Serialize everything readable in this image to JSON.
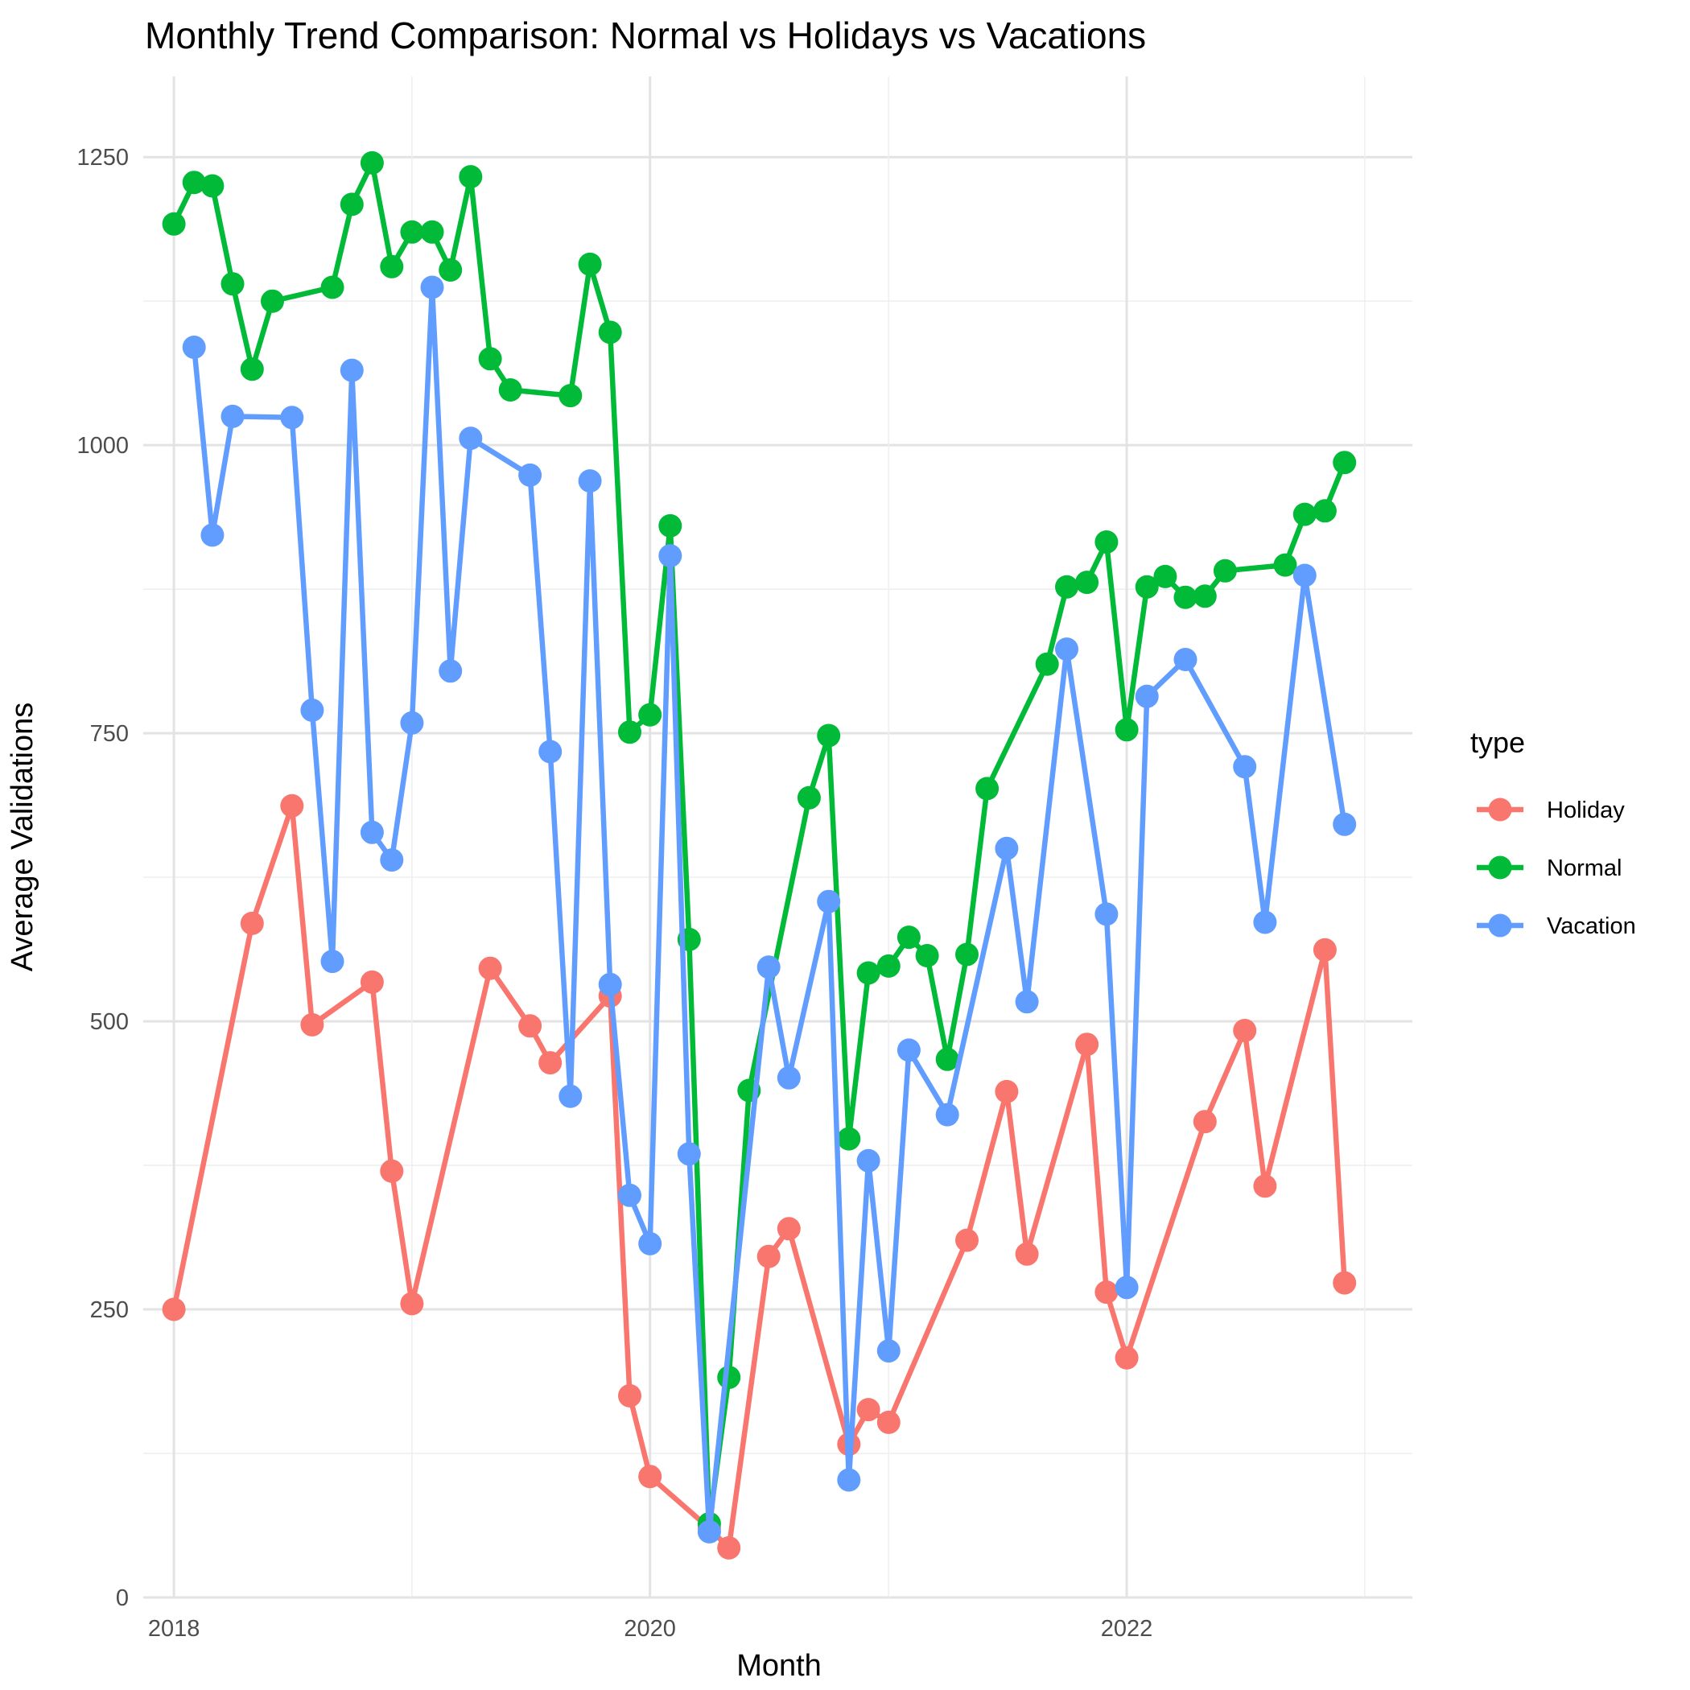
{
  "chart_data": {
    "type": "line",
    "title": "Monthly Trend Comparison: Normal vs Holidays vs Vacations",
    "xlabel": "Month",
    "ylabel": "Average Validations",
    "x_ticks": [
      "2018",
      "2020",
      "2022"
    ],
    "y_ticks": [
      "0",
      "250",
      "500",
      "750",
      "1000",
      "1250"
    ],
    "xlim": [
      "2017-11-15",
      "2023-03-15"
    ],
    "ylim": [
      0,
      1320
    ],
    "grid": true,
    "legend": {
      "title": "type",
      "position": "right"
    },
    "series": [
      {
        "name": "Holiday",
        "color": "#F8766D",
        "points": [
          [
            "2018-01-01",
            250
          ],
          [
            "2018-05-01",
            585
          ],
          [
            "2018-07-01",
            687
          ],
          [
            "2018-08-01",
            497
          ],
          [
            "2018-11-01",
            534
          ],
          [
            "2018-12-01",
            370
          ],
          [
            "2019-01-01",
            255
          ],
          [
            "2019-05-01",
            546
          ],
          [
            "2019-07-01",
            496
          ],
          [
            "2019-08-01",
            464
          ],
          [
            "2019-11-01",
            522
          ],
          [
            "2019-12-01",
            175
          ],
          [
            "2020-01-01",
            105
          ],
          [
            "2020-04-01",
            60
          ],
          [
            "2020-05-01",
            43
          ],
          [
            "2020-07-01",
            296
          ],
          [
            "2020-08-01",
            320
          ],
          [
            "2020-11-01",
            133
          ],
          [
            "2020-12-01",
            163
          ],
          [
            "2021-01-01",
            152
          ],
          [
            "2021-05-01",
            310
          ],
          [
            "2021-07-01",
            439
          ],
          [
            "2021-08-01",
            298
          ],
          [
            "2021-11-01",
            480
          ],
          [
            "2021-12-01",
            265
          ],
          [
            "2022-01-01",
            208
          ],
          [
            "2022-05-01",
            413
          ],
          [
            "2022-07-01",
            492
          ],
          [
            "2022-08-01",
            357
          ],
          [
            "2022-11-01",
            562
          ],
          [
            "2022-12-01",
            273
          ]
        ]
      },
      {
        "name": "Normal",
        "color": "#00BA38",
        "points": [
          [
            "2018-01-01",
            1192
          ],
          [
            "2018-02-01",
            1228
          ],
          [
            "2018-03-01",
            1225
          ],
          [
            "2018-04-01",
            1140
          ],
          [
            "2018-05-01",
            1066
          ],
          [
            "2018-06-01",
            1125
          ],
          [
            "2018-09-01",
            1137
          ],
          [
            "2018-10-01",
            1209
          ],
          [
            "2018-11-01",
            1245
          ],
          [
            "2018-12-01",
            1155
          ],
          [
            "2019-01-01",
            1185
          ],
          [
            "2019-02-01",
            1185
          ],
          [
            "2019-03-01",
            1152
          ],
          [
            "2019-04-01",
            1233
          ],
          [
            "2019-05-01",
            1075
          ],
          [
            "2019-06-01",
            1048
          ],
          [
            "2019-09-01",
            1043
          ],
          [
            "2019-10-01",
            1157
          ],
          [
            "2019-11-01",
            1098
          ],
          [
            "2019-12-01",
            751
          ],
          [
            "2020-01-01",
            766
          ],
          [
            "2020-02-01",
            930
          ],
          [
            "2020-03-01",
            571
          ],
          [
            "2020-04-01",
            64
          ],
          [
            "2020-05-01",
            191
          ],
          [
            "2020-06-01",
            440
          ],
          [
            "2020-09-01",
            694
          ],
          [
            "2020-10-01",
            748
          ],
          [
            "2020-11-01",
            398
          ],
          [
            "2020-12-01",
            542
          ],
          [
            "2021-01-01",
            548
          ],
          [
            "2021-02-01",
            573
          ],
          [
            "2021-03-01",
            557
          ],
          [
            "2021-04-01",
            467
          ],
          [
            "2021-05-01",
            558
          ],
          [
            "2021-06-01",
            702
          ],
          [
            "2021-09-01",
            810
          ],
          [
            "2021-10-01",
            877
          ],
          [
            "2021-11-01",
            881
          ],
          [
            "2021-12-01",
            916
          ],
          [
            "2022-01-01",
            753
          ],
          [
            "2022-02-01",
            877
          ],
          [
            "2022-03-01",
            886
          ],
          [
            "2022-04-01",
            868
          ],
          [
            "2022-05-01",
            869
          ],
          [
            "2022-06-01",
            891
          ],
          [
            "2022-09-01",
            896
          ],
          [
            "2022-10-01",
            940
          ],
          [
            "2022-11-01",
            943
          ],
          [
            "2022-12-01",
            985
          ]
        ]
      },
      {
        "name": "Vacation",
        "color": "#619CFF",
        "points": [
          [
            "2018-02-01",
            1085
          ],
          [
            "2018-03-01",
            922
          ],
          [
            "2018-04-01",
            1025
          ],
          [
            "2018-07-01",
            1024
          ],
          [
            "2018-08-01",
            770
          ],
          [
            "2018-09-01",
            552
          ],
          [
            "2018-10-01",
            1065
          ],
          [
            "2018-11-01",
            664
          ],
          [
            "2018-12-01",
            640
          ],
          [
            "2019-01-01",
            759
          ],
          [
            "2019-02-01",
            1137
          ],
          [
            "2019-03-01",
            804
          ],
          [
            "2019-04-01",
            1006
          ],
          [
            "2019-07-01",
            974
          ],
          [
            "2019-08-01",
            734
          ],
          [
            "2019-09-01",
            435
          ],
          [
            "2019-10-01",
            969
          ],
          [
            "2019-11-01",
            532
          ],
          [
            "2019-12-01",
            349
          ],
          [
            "2020-01-01",
            307
          ],
          [
            "2020-02-01",
            904
          ],
          [
            "2020-03-01",
            385
          ],
          [
            "2020-04-01",
            57
          ],
          [
            "2020-07-01",
            547
          ],
          [
            "2020-08-01",
            451
          ],
          [
            "2020-10-01",
            604
          ],
          [
            "2020-11-01",
            102
          ],
          [
            "2020-12-01",
            379
          ],
          [
            "2021-01-01",
            214
          ],
          [
            "2021-02-01",
            475
          ],
          [
            "2021-04-01",
            419
          ],
          [
            "2021-07-01",
            650
          ],
          [
            "2021-08-01",
            517
          ],
          [
            "2021-10-01",
            823
          ],
          [
            "2021-12-01",
            593
          ],
          [
            "2022-01-01",
            269
          ],
          [
            "2022-02-01",
            782
          ],
          [
            "2022-04-01",
            814
          ],
          [
            "2022-07-01",
            721
          ],
          [
            "2022-08-01",
            586
          ],
          [
            "2022-10-01",
            887
          ],
          [
            "2022-12-01",
            671
          ]
        ]
      }
    ]
  }
}
